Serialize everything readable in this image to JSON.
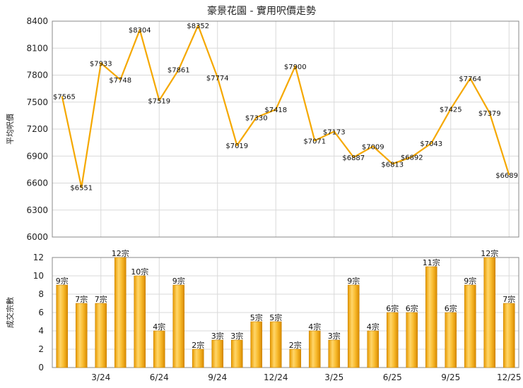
{
  "chart_data": [
    {
      "type": "line",
      "title": "豪景花園 - 實用呎價走勢",
      "ylabel": "平均呎價",
      "ylim": [
        6000,
        8400
      ],
      "yticks": [
        6000,
        6300,
        6600,
        6900,
        7200,
        7500,
        7800,
        8100,
        8400
      ],
      "color": "#F5A800",
      "value_prefix": "$",
      "values": [
        7565,
        6551,
        7933,
        7748,
        8304,
        7519,
        7861,
        8352,
        7774,
        7019,
        7330,
        7418,
        7900,
        7071,
        7173,
        6887,
        7009,
        6813,
        6892,
        7043,
        7425,
        7764,
        7379,
        6689
      ]
    },
    {
      "type": "bar",
      "ylabel": "成交宗數",
      "ylim": [
        0,
        12
      ],
      "yticks": [
        0,
        2,
        4,
        6,
        8,
        10,
        12
      ],
      "color": "#F5A800",
      "value_suffix": "宗",
      "values": [
        9,
        7,
        7,
        12,
        10,
        4,
        9,
        2,
        3,
        3,
        5,
        5,
        2,
        4,
        3,
        9,
        4,
        6,
        6,
        11,
        6,
        9,
        12,
        7
      ],
      "xtick_labels": [
        {
          "index": 2,
          "label": "3/24"
        },
        {
          "index": 5,
          "label": "6/24"
        },
        {
          "index": 8,
          "label": "9/24"
        },
        {
          "index": 11,
          "label": "12/24"
        },
        {
          "index": 14,
          "label": "3/25"
        },
        {
          "index": 17,
          "label": "6/25"
        },
        {
          "index": 20,
          "label": "9/25"
        },
        {
          "index": 23,
          "label": "12/25"
        }
      ]
    }
  ]
}
